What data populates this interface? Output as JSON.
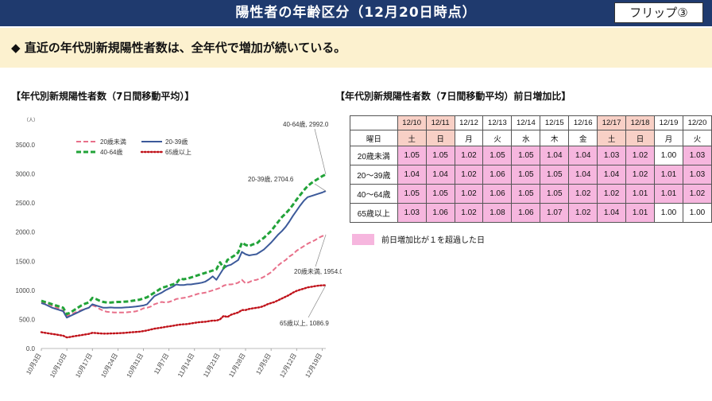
{
  "header": {
    "title": "陽性者の年齢区分（12月20日時点）",
    "badge": "フリップ③"
  },
  "banner": {
    "text": "◆ 直近の年代別新規陽性者数は、全年代で増加が続いている。"
  },
  "left_title": "【年代別新規陽性者数（7日間移動平均）】",
  "right_title": "【年代別新規陽性者数（7日間移動平均）前日増加比】",
  "colors": {
    "under20": "#e8708a",
    "age20_39": "#3c5a9a",
    "age40_64": "#22a339",
    "over65": "#c0121a",
    "highlight": "#f6b6de",
    "weekend": "#f8d0c6",
    "header_bg": "#1f3a6e",
    "banner_bg": "#fcf1cf"
  },
  "chart_data": {
    "type": "line",
    "yunit": "（人）",
    "ylim": [
      0,
      3500
    ],
    "yticks": [
      "0.0",
      "500.0",
      "1000.0",
      "1500.0",
      "2000.0",
      "2500.0",
      "3000.0",
      "3500.0"
    ],
    "x": [
      "10/3",
      "10/4",
      "10/5",
      "10/6",
      "10/7",
      "10/8",
      "10/9",
      "10/10",
      "10/11",
      "10/12",
      "10/13",
      "10/14",
      "10/15",
      "10/16",
      "10/17",
      "10/18",
      "10/19",
      "10/20",
      "10/21",
      "10/22",
      "10/23",
      "10/24",
      "10/25",
      "10/26",
      "10/27",
      "10/28",
      "10/29",
      "10/30",
      "10/31",
      "11/1",
      "11/2",
      "11/3",
      "11/4",
      "11/5",
      "11/6",
      "11/7",
      "11/8",
      "11/9",
      "11/10",
      "11/11",
      "11/12",
      "11/13",
      "11/14",
      "11/15",
      "11/16",
      "11/17",
      "11/18",
      "11/19",
      "11/20",
      "11/21",
      "11/22",
      "11/23",
      "11/24",
      "11/25",
      "11/26",
      "11/27",
      "11/28",
      "11/29",
      "11/30",
      "12/1",
      "12/2",
      "12/3",
      "12/4",
      "12/5",
      "12/6",
      "12/7",
      "12/8",
      "12/9",
      "12/10",
      "12/11",
      "12/12",
      "12/13",
      "12/14",
      "12/15",
      "12/16",
      "12/17",
      "12/18",
      "12/19",
      "12/20"
    ],
    "xtick_labels": [
      "10月3日",
      "10月10日",
      "10月17日",
      "10月24日",
      "10月31日",
      "11月7日",
      "11月14日",
      "11月21日",
      "11月28日",
      "12月5日",
      "12月12日",
      "12月19日"
    ],
    "xtick_index": [
      0,
      7,
      14,
      21,
      28,
      35,
      42,
      49,
      56,
      63,
      70,
      77
    ],
    "series": [
      {
        "name": "20歳未満",
        "style": "dashed",
        "values": [
          800,
          780,
          760,
          735,
          710,
          680,
          650,
          560,
          580,
          610,
          640,
          660,
          680,
          700,
          740,
          720,
          680,
          650,
          630,
          625,
          620,
          620,
          620,
          620,
          625,
          630,
          640,
          660,
          690,
          700,
          720,
          760,
          780,
          800,
          790,
          800,
          820,
          850,
          860,
          870,
          880,
          900,
          920,
          940,
          950,
          960,
          980,
          1000,
          1020,
          1040,
          1080,
          1100,
          1100,
          1110,
          1130,
          1180,
          1120,
          1140,
          1170,
          1180,
          1200,
          1230,
          1270,
          1310,
          1370,
          1430,
          1480,
          1520,
          1580,
          1620,
          1680,
          1720,
          1760,
          1800,
          1830,
          1860,
          1900,
          1930,
          1954
        ]
      },
      {
        "name": "20-39歳",
        "style": "solid",
        "values": [
          780,
          760,
          730,
          700,
          680,
          660,
          640,
          530,
          560,
          590,
          620,
          650,
          680,
          700,
          760,
          740,
          720,
          700,
          700,
          705,
          700,
          700,
          700,
          705,
          710,
          715,
          720,
          730,
          740,
          760,
          830,
          900,
          930,
          960,
          1000,
          1030,
          1060,
          1100,
          1090,
          1090,
          1100,
          1100,
          1110,
          1120,
          1130,
          1150,
          1190,
          1240,
          1180,
          1280,
          1380,
          1420,
          1440,
          1480,
          1520,
          1660,
          1620,
          1600,
          1610,
          1620,
          1660,
          1700,
          1760,
          1820,
          1890,
          1960,
          2020,
          2090,
          2180,
          2280,
          2370,
          2460,
          2540,
          2600,
          2620,
          2640,
          2660,
          2680,
          2705
        ]
      },
      {
        "name": "40-64歳",
        "style": "dashed",
        "values": [
          820,
          800,
          780,
          760,
          740,
          720,
          700,
          590,
          620,
          660,
          700,
          740,
          770,
          790,
          870,
          850,
          820,
          800,
          790,
          790,
          795,
          800,
          800,
          805,
          810,
          820,
          830,
          840,
          860,
          880,
          920,
          960,
          1000,
          1040,
          1060,
          1080,
          1100,
          1120,
          1200,
          1190,
          1200,
          1220,
          1240,
          1260,
          1280,
          1300,
          1320,
          1340,
          1360,
          1480,
          1380,
          1520,
          1560,
          1600,
          1650,
          1820,
          1780,
          1760,
          1790,
          1800,
          1860,
          1900,
          1960,
          2020,
          2100,
          2180,
          2260,
          2320,
          2390,
          2470,
          2560,
          2640,
          2720,
          2790,
          2840,
          2880,
          2920,
          2960,
          2992
        ]
      },
      {
        "name": "65歳以上",
        "style": "dotted",
        "values": [
          280,
          270,
          260,
          250,
          240,
          230,
          220,
          190,
          200,
          210,
          220,
          230,
          240,
          250,
          270,
          265,
          260,
          255,
          255,
          258,
          260,
          262,
          265,
          270,
          275,
          280,
          285,
          290,
          300,
          310,
          325,
          340,
          350,
          360,
          370,
          380,
          390,
          400,
          410,
          415,
          420,
          430,
          440,
          450,
          455,
          460,
          470,
          480,
          480,
          500,
          560,
          540,
          580,
          600,
          620,
          660,
          660,
          680,
          690,
          700,
          710,
          730,
          760,
          780,
          800,
          830,
          860,
          890,
          920,
          960,
          990,
          1010,
          1030,
          1050,
          1060,
          1070,
          1080,
          1085,
          1087
        ]
      }
    ],
    "annotations": [
      "40-64歳, 2992.0",
      "20-39歳, 2704.6",
      "20歳未満, 1954.0",
      "65歳以上, 1086.9"
    ]
  },
  "table": {
    "dates": [
      "12/10",
      "12/11",
      "12/12",
      "12/13",
      "12/14",
      "12/15",
      "12/16",
      "12/17",
      "12/18",
      "12/19",
      "12/20"
    ],
    "day_label": "曜日",
    "days": [
      "土",
      "日",
      "月",
      "火",
      "水",
      "木",
      "金",
      "土",
      "日",
      "月",
      "火"
    ],
    "weekend_cols": [
      0,
      1,
      7,
      8
    ],
    "rows": [
      {
        "label": "20歳未満",
        "values": [
          "1.05",
          "1.05",
          "1.02",
          "1.05",
          "1.05",
          "1.04",
          "1.04",
          "1.03",
          "1.02",
          "1.00",
          "1.03"
        ]
      },
      {
        "label": "20～39歳",
        "values": [
          "1.04",
          "1.04",
          "1.02",
          "1.06",
          "1.05",
          "1.05",
          "1.04",
          "1.04",
          "1.02",
          "1.01",
          "1.03"
        ]
      },
      {
        "label": "40～64歳",
        "values": [
          "1.05",
          "1.05",
          "1.02",
          "1.06",
          "1.05",
          "1.05",
          "1.02",
          "1.02",
          "1.01",
          "1.01",
          "1.02"
        ]
      },
      {
        "label": "65歳以上",
        "values": [
          "1.03",
          "1.06",
          "1.02",
          "1.08",
          "1.06",
          "1.07",
          "1.02",
          "1.04",
          "1.01",
          "1.00",
          "1.00"
        ]
      }
    ]
  },
  "legend_note": "前日増加比が１を超過した日"
}
